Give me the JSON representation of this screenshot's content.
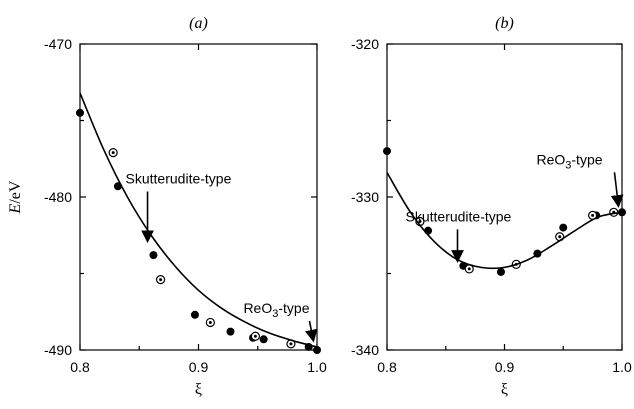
{
  "chart_data": [
    {
      "type": "scatter",
      "panel_label": "(a)",
      "xlabel": "ξ",
      "ylabel": "E/eV",
      "xlim": [
        0.8,
        1.0
      ],
      "ylim": [
        -490,
        -470
      ],
      "x_ticks": [
        "0.8",
        "0.9",
        "1.0"
      ],
      "y_ticks": [
        "-470",
        "-480",
        "-490"
      ],
      "series": [
        {
          "marker": "filled-circle",
          "points": [
            [
              0.8,
              -474.5
            ],
            [
              0.832,
              -479.3
            ],
            [
              0.862,
              -483.8
            ],
            [
              0.897,
              -487.7
            ],
            [
              0.927,
              -488.8
            ],
            [
              0.946,
              -489.2
            ],
            [
              0.955,
              -489.3
            ],
            [
              0.978,
              -489.6
            ],
            [
              0.993,
              -489.8
            ],
            [
              1.0,
              -490.0
            ]
          ]
        },
        {
          "marker": "open-circle",
          "points": [
            [
              0.828,
              -477.1
            ],
            [
              0.868,
              -485.4
            ],
            [
              0.91,
              -488.2
            ],
            [
              0.948,
              -489.1
            ],
            [
              0.978,
              -489.6
            ]
          ]
        },
        {
          "marker": "none",
          "style": "fit-curve",
          "points": [
            [
              0.8,
              -473.2
            ],
            [
              0.82,
              -476.9
            ],
            [
              0.84,
              -480.0
            ],
            [
              0.86,
              -482.5
            ],
            [
              0.88,
              -484.5
            ],
            [
              0.9,
              -486.1
            ],
            [
              0.92,
              -487.3
            ],
            [
              0.94,
              -488.2
            ],
            [
              0.96,
              -488.9
            ],
            [
              0.98,
              -489.4
            ],
            [
              1.0,
              -489.8
            ]
          ]
        }
      ],
      "annotations": [
        {
          "text": "Skutterudite-type",
          "x": 0.857,
          "y": -483.3
        },
        {
          "text": "ReO3-type",
          "x": 0.997,
          "y": -489.8
        }
      ]
    },
    {
      "type": "scatter",
      "panel_label": "(b)",
      "xlabel": "ξ",
      "ylabel": "",
      "xlim": [
        0.8,
        1.0
      ],
      "ylim": [
        -340,
        -320
      ],
      "x_ticks": [
        "0.8",
        "0.9",
        "1.0"
      ],
      "y_ticks": [
        "-320",
        "-330",
        "-340"
      ],
      "series": [
        {
          "marker": "filled-circle",
          "points": [
            [
              0.8,
              -327.0
            ],
            [
              0.835,
              -332.2
            ],
            [
              0.865,
              -334.5
            ],
            [
              0.897,
              -334.9
            ],
            [
              0.928,
              -333.7
            ],
            [
              0.95,
              -332.0
            ],
            [
              0.978,
              -331.2
            ],
            [
              0.993,
              -331.0
            ],
            [
              1.0,
              -331.0
            ]
          ]
        },
        {
          "marker": "open-circle",
          "points": [
            [
              0.828,
              -331.6
            ],
            [
              0.87,
              -334.7
            ],
            [
              0.91,
              -334.4
            ],
            [
              0.947,
              -332.6
            ],
            [
              0.975,
              -331.2
            ],
            [
              0.993,
              -331.0
            ]
          ]
        },
        {
          "marker": "none",
          "style": "fit-curve",
          "points": [
            [
              0.8,
              -328.4
            ],
            [
              0.82,
              -331.0
            ],
            [
              0.84,
              -332.9
            ],
            [
              0.86,
              -334.1
            ],
            [
              0.88,
              -334.6
            ],
            [
              0.9,
              -334.6
            ],
            [
              0.92,
              -334.1
            ],
            [
              0.94,
              -333.2
            ],
            [
              0.96,
              -332.2
            ],
            [
              0.98,
              -331.3
            ],
            [
              1.0,
              -331.0
            ]
          ]
        }
      ],
      "annotations": [
        {
          "text": "Skutterudite-type",
          "x": 0.86,
          "y": -334.6
        },
        {
          "text": "ReO3-type",
          "x": 0.997,
          "y": -331.0
        }
      ]
    }
  ]
}
